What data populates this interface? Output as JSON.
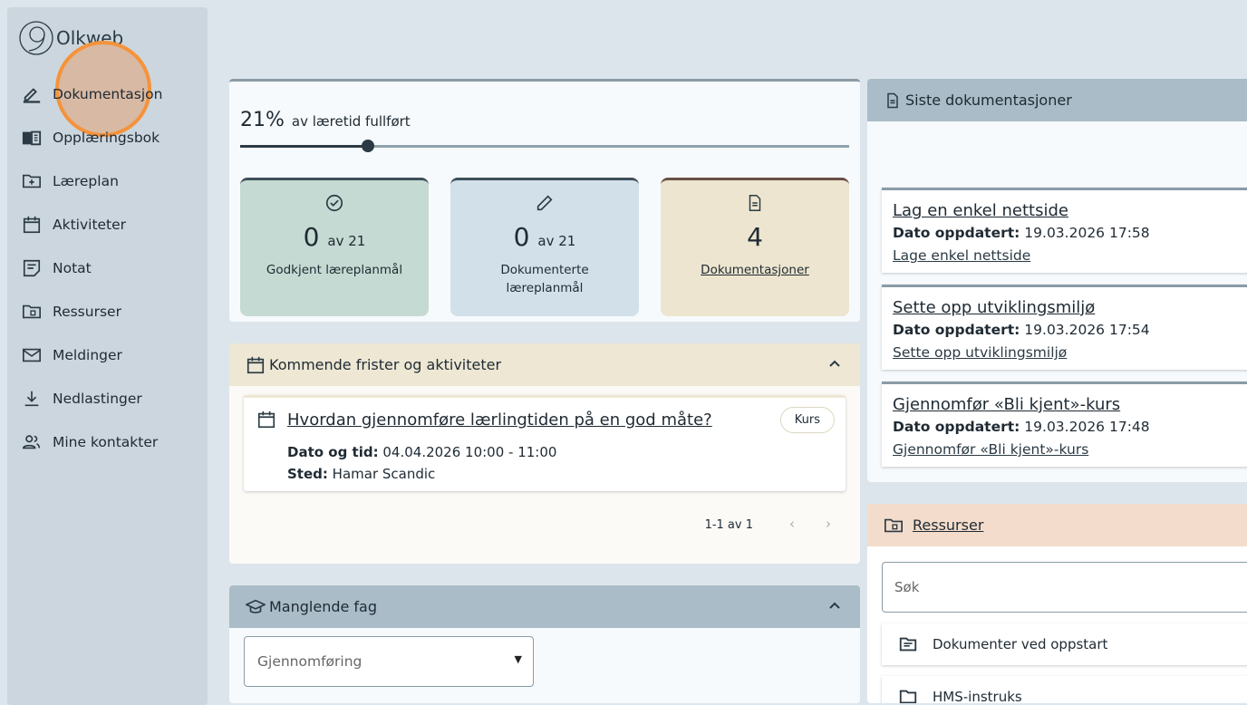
{
  "app": {
    "name": "Olkweb"
  },
  "sidebar": {
    "items": [
      {
        "label": "Dokumentasjon",
        "icon": "pencil-icon"
      },
      {
        "label": "Opplæringsbok",
        "icon": "book-icon"
      },
      {
        "label": "Læreplan",
        "icon": "folder-plus-icon"
      },
      {
        "label": "Aktiviteter",
        "icon": "calendar-icon"
      },
      {
        "label": "Notat",
        "icon": "note-icon"
      },
      {
        "label": "Ressurser",
        "icon": "folder-doc-icon"
      },
      {
        "label": "Meldinger",
        "icon": "mail-icon"
      },
      {
        "label": "Nedlastinger",
        "icon": "download-icon"
      },
      {
        "label": "Mine kontakter",
        "icon": "contacts-icon"
      }
    ]
  },
  "progress": {
    "percent_label": "21%",
    "text": "av læretid fullført",
    "value": 21
  },
  "stats": [
    {
      "value": "0",
      "of": "av 21",
      "label": "Godkjent læreplanmål",
      "color": "#c5dad2"
    },
    {
      "value": "0",
      "of": "av 21",
      "label": "Dokumenterte læreplanmål",
      "color": "#d2e0ea"
    },
    {
      "value": "4",
      "label": "Dokumentasjoner",
      "color": "#ede5cf"
    }
  ],
  "upcoming": {
    "title": "Kommende frister og aktiviteter",
    "events": [
      {
        "title": "Hvordan gjennomføre lærlingtiden på en god måte?",
        "badge": "Kurs",
        "date_label": "Dato og tid:",
        "date": "04.04.2026 10:00 - 11:00",
        "place_label": "Sted:",
        "place": "Hamar Scandic"
      }
    ],
    "pager": "1-1 av 1"
  },
  "missing": {
    "title": "Manglende fag",
    "select_placeholder": "Gjennomføring"
  },
  "recent": {
    "title": "Siste dokumentasjoner",
    "items": [
      {
        "title": "Lag en enkel nettside",
        "date_label": "Dato oppdatert:",
        "date": "19.03.2026 17:58",
        "link": "Lage enkel nettside"
      },
      {
        "title": "Sette opp utviklingsmiljø",
        "date_label": "Dato oppdatert:",
        "date": "19.03.2026 17:54",
        "link": "Sette opp utviklingsmiljø"
      },
      {
        "title": "Gjennomfør «Bli kjent»-kurs",
        "date_label": "Dato oppdatert:",
        "date": "19.03.2026 17:48",
        "link": "Gjennomfør «Bli kjent»-kurs"
      }
    ]
  },
  "resources": {
    "title": "Ressurser",
    "search_placeholder": "Søk",
    "items": [
      {
        "label": "Dokumenter ved oppstart"
      },
      {
        "label": "HMS-instruks"
      }
    ]
  }
}
